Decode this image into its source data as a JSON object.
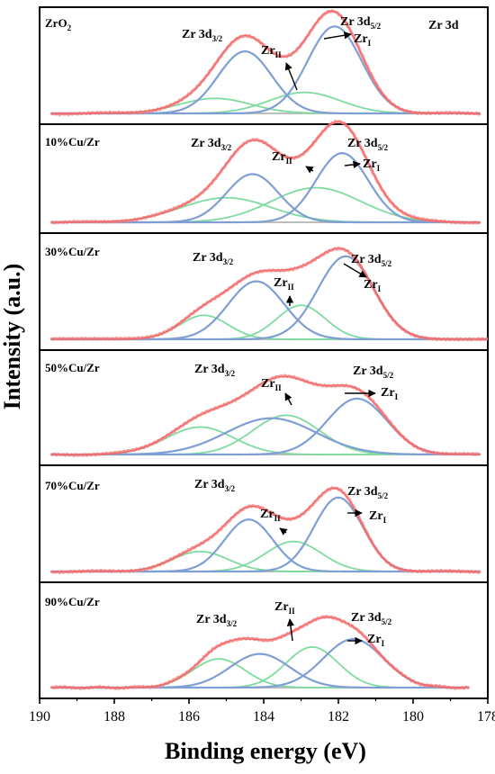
{
  "chart_data": {
    "type": "line",
    "xlabel": "Binding energy (eV)",
    "ylabel": "Intensity (a.u.)",
    "xlim": [
      190,
      178
    ],
    "x_ticks": [
      "190",
      "188",
      "186",
      "184",
      "182",
      "180",
      "178"
    ],
    "series_colors": {
      "envelope": "#f08080",
      "fit": "#ff4d4d",
      "zr_3d_peaks": "#7f9fd4",
      "zr_ii_peaks": "#7fdba0",
      "background": "#bdbdbd"
    },
    "panels": [
      {
        "sample": "ZrO2",
        "sample_base": "ZrO",
        "sample_sub": "2",
        "corner_label": "Zr 3d",
        "x_range": [
          189.7,
          178.2
        ],
        "peaks_blue": [
          {
            "center": 182.1,
            "height": 0.87,
            "width": 0.72
          },
          {
            "center": 184.5,
            "height": 0.62,
            "width": 0.72
          }
        ],
        "peaks_green": [
          {
            "center": 182.9,
            "height": 0.21,
            "width": 0.95
          },
          {
            "center": 185.3,
            "height": 0.15,
            "width": 0.95
          }
        ],
        "annotations": {
          "d32": "Zr 3d",
          "d32_sub": "3/2",
          "d52": "Zr 3d",
          "d52_sub": "5/2",
          "zr1": "Zr",
          "zr1_sub": "I",
          "zr2": "Zr",
          "zr2_sub": "II"
        }
      },
      {
        "sample": "10%Cu/Zr",
        "x_range": [
          189.7,
          178.2
        ],
        "peaks_blue": [
          {
            "center": 181.9,
            "height": 0.76,
            "width": 0.7
          },
          {
            "center": 184.3,
            "height": 0.53,
            "width": 0.7
          }
        ],
        "peaks_green": [
          {
            "center": 182.6,
            "height": 0.38,
            "width": 1.2
          },
          {
            "center": 185.0,
            "height": 0.27,
            "width": 1.2
          }
        ],
        "annotations": {
          "d32": "Zr 3d",
          "d32_sub": "3/2",
          "d52": "Zr 3d",
          "d52_sub": "5/2",
          "zr1": "Zr",
          "zr1_sub": "I",
          "zr2": "Zr",
          "zr2_sub": "II"
        }
      },
      {
        "sample": "30%Cu/Zr",
        "x_range": [
          189.7,
          178.0
        ],
        "peaks_blue": [
          {
            "center": 181.8,
            "height": 0.83,
            "width": 0.75
          },
          {
            "center": 184.2,
            "height": 0.58,
            "width": 0.75
          }
        ],
        "peaks_green": [
          {
            "center": 183.0,
            "height": 0.34,
            "width": 0.65
          },
          {
            "center": 185.6,
            "height": 0.24,
            "width": 0.65
          }
        ],
        "annotations": {
          "d32": "Zr 3d",
          "d32_sub": "3/2",
          "d52": "Zr 3d",
          "d52_sub": "5/2",
          "zr1": "Zr",
          "zr1_sub": "I",
          "zr2": "Zr",
          "zr2_sub": "II"
        }
      },
      {
        "sample": "50%Cu/Zr",
        "x_range": [
          189.7,
          178.2
        ],
        "peaks_blue": [
          {
            "center": 181.5,
            "height": 0.57,
            "width": 0.8
          },
          {
            "center": 183.8,
            "height": 0.37,
            "width": 1.2
          }
        ],
        "peaks_green": [
          {
            "center": 183.4,
            "height": 0.4,
            "width": 0.9
          },
          {
            "center": 185.7,
            "height": 0.28,
            "width": 0.9
          }
        ],
        "annotations": {
          "d32": "Zr 3d",
          "d32_sub": "3/2",
          "d52": "Zr 3d",
          "d52_sub": "5/2",
          "zr1": "Zr",
          "zr1_sub": "I",
          "zr2": "Zr",
          "zr2_sub": "II"
        }
      },
      {
        "sample": "70%Cu/Zr",
        "x_range": [
          189.7,
          178.2
        ],
        "peaks_blue": [
          {
            "center": 182.0,
            "height": 0.74,
            "width": 0.65
          },
          {
            "center": 184.4,
            "height": 0.52,
            "width": 0.65
          }
        ],
        "peaks_green": [
          {
            "center": 183.2,
            "height": 0.3,
            "width": 0.75
          },
          {
            "center": 185.7,
            "height": 0.2,
            "width": 0.75
          }
        ],
        "annotations": {
          "d32": "Zr 3d",
          "d32_sub": "3/2",
          "d52": "Zr 3d",
          "d52_sub": "5/2",
          "zr1": "Zr",
          "zr1_sub": "I",
          "zr2": "Zr",
          "zr2_sub": "II"
        }
      },
      {
        "sample": "90%Cu/Zr",
        "x_range": [
          189.7,
          178.5
        ],
        "peaks_blue": [
          {
            "center": 181.6,
            "height": 0.49,
            "width": 0.8
          },
          {
            "center": 184.1,
            "height": 0.34,
            "width": 0.8
          }
        ],
        "peaks_green": [
          {
            "center": 182.7,
            "height": 0.41,
            "width": 0.7
          },
          {
            "center": 185.2,
            "height": 0.29,
            "width": 0.7
          }
        ],
        "annotations": {
          "d32": "Zr 3d",
          "d32_sub": "3/2",
          "d52": "Zr 3d",
          "d52_sub": "5/2",
          "zr1": "Zr",
          "zr1_sub": "I",
          "zr2": "Zr",
          "zr2_sub": "II"
        }
      }
    ]
  }
}
